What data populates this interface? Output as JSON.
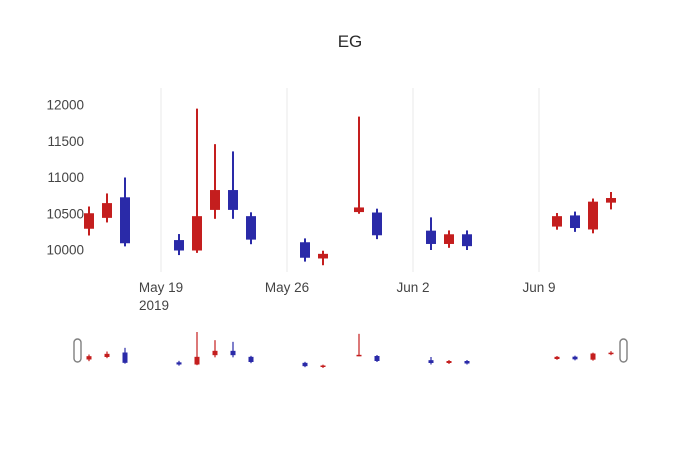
{
  "chart_data": {
    "type": "candlestick",
    "title": "EG",
    "increasing_color": "#2a2aa8",
    "decreasing_color": "#c41e1e",
    "gridline_color": "#e8e8e8",
    "tick_label_color": "#444444",
    "ylim": [
      9750,
      12050
    ],
    "y_ticks": [
      {
        "value": 10000,
        "label": "10000"
      },
      {
        "value": 10500,
        "label": "10500"
      },
      {
        "value": 11000,
        "label": "11000"
      },
      {
        "value": 11500,
        "label": "11500"
      },
      {
        "value": 12000,
        "label": "12000"
      }
    ],
    "x_ticks": [
      {
        "date": "2019-05-19",
        "label": "May 19",
        "sublabel": "2019"
      },
      {
        "date": "2019-05-26",
        "label": "May 26",
        "sublabel": ""
      },
      {
        "date": "2019-06-02",
        "label": "Jun 2",
        "sublabel": ""
      },
      {
        "date": "2019-06-09",
        "label": "Jun 9",
        "sublabel": ""
      }
    ],
    "candles": [
      {
        "date": "2019-05-15",
        "open": 10500,
        "high": 10600,
        "low": 10200,
        "close": 10300
      },
      {
        "date": "2019-05-16",
        "open": 10640,
        "high": 10780,
        "low": 10380,
        "close": 10450
      },
      {
        "date": "2019-05-17",
        "open": 10100,
        "high": 11000,
        "low": 10050,
        "close": 10720
      },
      {
        "date": "2019-05-20",
        "open": 10000,
        "high": 10220,
        "low": 9930,
        "close": 10130
      },
      {
        "date": "2019-05-21",
        "open": 10460,
        "high": 11950,
        "low": 9960,
        "close": 10000
      },
      {
        "date": "2019-05-22",
        "open": 10820,
        "high": 11460,
        "low": 10430,
        "close": 10560
      },
      {
        "date": "2019-05-23",
        "open": 10560,
        "high": 11360,
        "low": 10430,
        "close": 10820
      },
      {
        "date": "2019-05-24",
        "open": 10150,
        "high": 10520,
        "low": 10080,
        "close": 10460
      },
      {
        "date": "2019-05-27",
        "open": 9900,
        "high": 10160,
        "low": 9840,
        "close": 10100
      },
      {
        "date": "2019-05-28",
        "open": 9940,
        "high": 9990,
        "low": 9790,
        "close": 9890
      },
      {
        "date": "2019-05-30",
        "open": 10580,
        "high": 11840,
        "low": 10500,
        "close": 10530
      },
      {
        "date": "2019-05-31",
        "open": 10210,
        "high": 10570,
        "low": 10150,
        "close": 10510
      },
      {
        "date": "2019-06-03",
        "open": 10090,
        "high": 10450,
        "low": 10000,
        "close": 10260
      },
      {
        "date": "2019-06-04",
        "open": 10210,
        "high": 10270,
        "low": 10030,
        "close": 10090
      },
      {
        "date": "2019-06-05",
        "open": 10060,
        "high": 10270,
        "low": 10000,
        "close": 10210
      },
      {
        "date": "2019-06-10",
        "open": 10460,
        "high": 10510,
        "low": 10280,
        "close": 10330
      },
      {
        "date": "2019-06-11",
        "open": 10310,
        "high": 10530,
        "low": 10250,
        "close": 10470
      },
      {
        "date": "2019-06-12",
        "open": 10660,
        "high": 10710,
        "low": 10230,
        "close": 10290
      },
      {
        "date": "2019-06-13",
        "open": 10710,
        "high": 10800,
        "low": 10560,
        "close": 10660
      }
    ],
    "rangeslider": {
      "visible": true,
      "selected_range": "full"
    }
  }
}
